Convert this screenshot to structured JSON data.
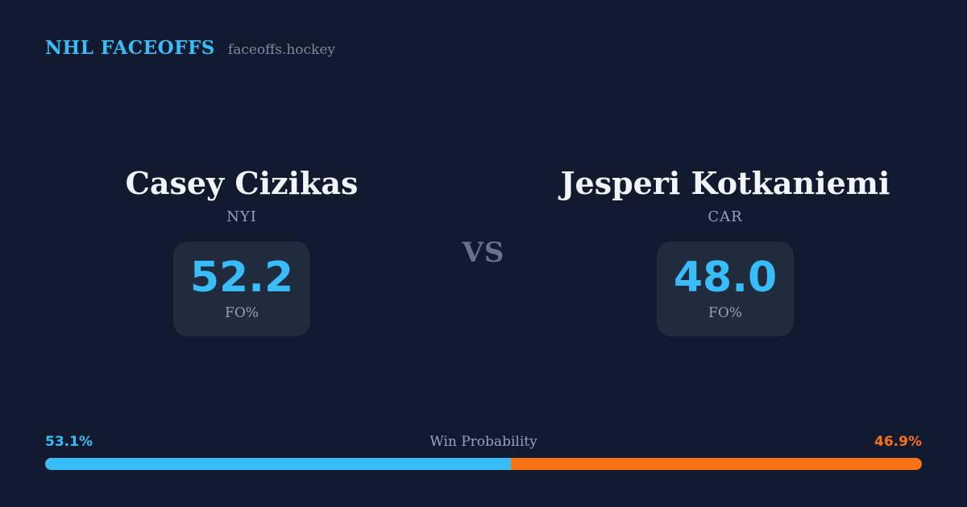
{
  "header": {
    "brand": "NHL FACEOFFS",
    "site": "faceoffs.hockey"
  },
  "matchup": {
    "vs_label": "VS",
    "players": [
      {
        "name": "Casey Cizikas",
        "team": "NYI",
        "stat_value": "52.2",
        "stat_label": "FO%"
      },
      {
        "name": "Jesperi Kotkaniemi",
        "team": "CAR",
        "stat_value": "48.0",
        "stat_label": "FO%"
      }
    ]
  },
  "win_probability": {
    "title": "Win Probability",
    "left_label": "53.1%",
    "right_label": "46.9%",
    "left_value": 53.1,
    "right_value": 46.9
  },
  "colors": {
    "background": "#111a2e",
    "panel": "#202c3e",
    "accent_blue": "#38bdf8",
    "accent_orange": "#f97316",
    "text_primary": "#f1f5f9",
    "text_muted": "#94a3b8"
  }
}
